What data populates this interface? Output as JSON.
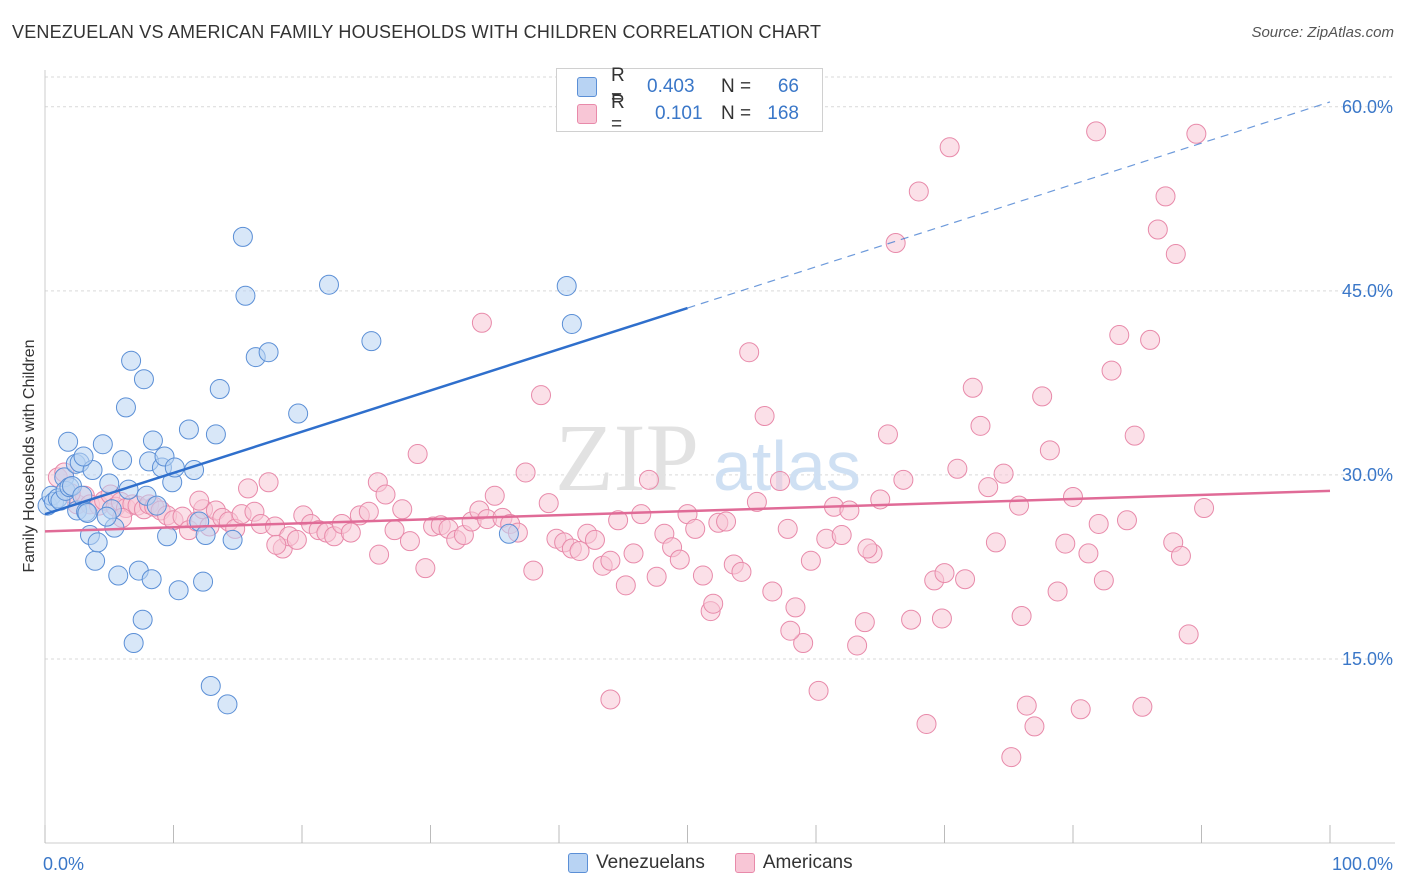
{
  "header": {
    "title": "VENEZUELAN VS AMERICAN FAMILY HOUSEHOLDS WITH CHILDREN CORRELATION CHART",
    "source": "Source: ZipAtlas.com"
  },
  "legend": {
    "rows": [
      {
        "r_label": "R =",
        "r_value": "0.403",
        "n_label": "N =",
        "n_value": "66"
      },
      {
        "r_label": "R =",
        "r_value": "0.101",
        "n_label": "N =",
        "n_value": "168"
      }
    ]
  },
  "watermark": {
    "zip": "ZIP",
    "atlas": "atlas"
  },
  "colors": {
    "venezuelan_fill": "#b8d3f3",
    "venezuelan_stroke": "#5b8fd6",
    "venezuelan_line": "#2f6fcc",
    "american_fill": "#f8c6d6",
    "american_stroke": "#e88aaa",
    "american_line": "#e06b97",
    "axis_text": "#3a77c8",
    "grid": "#d9d9d9"
  },
  "chart_data": {
    "type": "scatter",
    "title": "VENEZUELAN VS AMERICAN FAMILY HOUSEHOLDS WITH CHILDREN CORRELATION CHART",
    "xlabel": "",
    "ylabel": "Family Households with Children",
    "xlim": [
      0,
      100
    ],
    "ylim": [
      0,
      63
    ],
    "x_tick_labels": [
      "0.0%",
      "100.0%"
    ],
    "y_ticks": [
      15,
      30,
      45,
      60
    ],
    "y_tick_labels": [
      "15.0%",
      "30.0%",
      "45.0%",
      "60.0%"
    ],
    "legend_entries": [
      "Venezuelans",
      "Americans"
    ],
    "series": [
      {
        "name": "Venezuelans",
        "r": 0.403,
        "n": 66,
        "trend": {
          "x0": 0,
          "y0": 26.8,
          "x1": 50,
          "y1": 43.6,
          "dashed_to_x": 100,
          "dashed_to_y": 60.4
        },
        "points": [
          [
            0.2,
            27.5
          ],
          [
            0.5,
            28.3
          ],
          [
            0.7,
            27.8
          ],
          [
            1.0,
            28.1
          ],
          [
            1.2,
            27.9
          ],
          [
            1.5,
            29.8
          ],
          [
            1.6,
            28.7
          ],
          [
            1.8,
            32.7
          ],
          [
            1.9,
            29.0
          ],
          [
            2.1,
            29.1
          ],
          [
            2.4,
            30.9
          ],
          [
            2.5,
            27.1
          ],
          [
            2.7,
            31.0
          ],
          [
            2.9,
            28.3
          ],
          [
            3.2,
            27.0
          ],
          [
            3.3,
            26.9
          ],
          [
            3.5,
            25.1
          ],
          [
            3.7,
            30.4
          ],
          [
            3.9,
            23.0
          ],
          [
            4.1,
            24.5
          ],
          [
            4.5,
            32.5
          ],
          [
            5.0,
            29.3
          ],
          [
            5.2,
            27.2
          ],
          [
            5.4,
            25.7
          ],
          [
            5.7,
            21.8
          ],
          [
            6.0,
            31.2
          ],
          [
            6.3,
            35.5
          ],
          [
            6.5,
            28.8
          ],
          [
            6.7,
            39.3
          ],
          [
            6.9,
            16.3
          ],
          [
            7.3,
            22.2
          ],
          [
            7.7,
            37.8
          ],
          [
            7.9,
            28.3
          ],
          [
            8.1,
            31.1
          ],
          [
            8.3,
            21.5
          ],
          [
            8.4,
            32.8
          ],
          [
            8.7,
            27.5
          ],
          [
            9.1,
            30.6
          ],
          [
            9.3,
            31.5
          ],
          [
            9.5,
            25.0
          ],
          [
            9.9,
            29.4
          ],
          [
            10.1,
            30.6
          ],
          [
            10.4,
            20.6
          ],
          [
            11.2,
            33.7
          ],
          [
            11.6,
            30.4
          ],
          [
            12.0,
            26.2
          ],
          [
            12.5,
            25.1
          ],
          [
            12.9,
            12.8
          ],
          [
            13.3,
            33.3
          ],
          [
            13.6,
            37.0
          ],
          [
            14.2,
            11.3
          ],
          [
            14.6,
            24.7
          ],
          [
            15.4,
            49.4
          ],
          [
            15.6,
            44.6
          ],
          [
            16.4,
            39.6
          ],
          [
            17.4,
            40.0
          ],
          [
            19.7,
            35.0
          ],
          [
            22.1,
            45.5
          ],
          [
            25.4,
            40.9
          ],
          [
            36.1,
            25.2
          ],
          [
            40.6,
            45.4
          ],
          [
            41.0,
            42.3
          ],
          [
            7.6,
            18.2
          ],
          [
            12.3,
            21.3
          ],
          [
            4.8,
            26.6
          ],
          [
            3.0,
            31.5
          ]
        ]
      },
      {
        "name": "Americans",
        "r": 0.101,
        "n": 168,
        "trend": {
          "x0": 0,
          "y0": 25.4,
          "x1": 100,
          "y1": 28.7
        },
        "points": [
          [
            1.0,
            29.8
          ],
          [
            1.5,
            30.2
          ],
          [
            2.5,
            27.6
          ],
          [
            3.1,
            28.3
          ],
          [
            3.5,
            27.6
          ],
          [
            4.2,
            27.5
          ],
          [
            4.6,
            27.9
          ],
          [
            5.1,
            28.4
          ],
          [
            5.5,
            27.4
          ],
          [
            5.9,
            27.8
          ],
          [
            6.3,
            27.3
          ],
          [
            6.8,
            27.6
          ],
          [
            7.2,
            27.5
          ],
          [
            7.7,
            27.2
          ],
          [
            8.1,
            27.6
          ],
          [
            8.5,
            27.4
          ],
          [
            9.0,
            27.1
          ],
          [
            9.5,
            26.7
          ],
          [
            10.0,
            26.3
          ],
          [
            10.7,
            26.6
          ],
          [
            11.2,
            25.5
          ],
          [
            11.8,
            26.2
          ],
          [
            12.3,
            27.2
          ],
          [
            12.8,
            25.8
          ],
          [
            13.3,
            27.1
          ],
          [
            13.8,
            26.5
          ],
          [
            14.3,
            26.2
          ],
          [
            14.8,
            25.6
          ],
          [
            15.3,
            26.8
          ],
          [
            15.8,
            28.9
          ],
          [
            16.3,
            27.0
          ],
          [
            16.8,
            26.0
          ],
          [
            17.4,
            29.4
          ],
          [
            17.9,
            25.8
          ],
          [
            18.5,
            24.0
          ],
          [
            19.0,
            25.0
          ],
          [
            19.6,
            24.7
          ],
          [
            20.1,
            26.7
          ],
          [
            20.7,
            26.0
          ],
          [
            21.3,
            25.5
          ],
          [
            21.9,
            25.3
          ],
          [
            22.5,
            25.0
          ],
          [
            23.1,
            26.0
          ],
          [
            23.8,
            25.3
          ],
          [
            24.5,
            26.7
          ],
          [
            25.2,
            27.0
          ],
          [
            25.9,
            29.4
          ],
          [
            26.5,
            28.4
          ],
          [
            27.2,
            25.5
          ],
          [
            27.8,
            27.2
          ],
          [
            28.4,
            24.6
          ],
          [
            29.0,
            31.7
          ],
          [
            29.6,
            22.4
          ],
          [
            30.2,
            25.8
          ],
          [
            30.8,
            25.9
          ],
          [
            31.4,
            25.6
          ],
          [
            32.0,
            24.7
          ],
          [
            32.6,
            25.1
          ],
          [
            33.2,
            26.2
          ],
          [
            33.8,
            27.1
          ],
          [
            34.4,
            26.4
          ],
          [
            35.0,
            28.3
          ],
          [
            35.6,
            26.5
          ],
          [
            36.2,
            26.0
          ],
          [
            36.8,
            25.3
          ],
          [
            37.4,
            30.2
          ],
          [
            38.0,
            22.2
          ],
          [
            38.6,
            36.5
          ],
          [
            39.2,
            27.7
          ],
          [
            39.8,
            24.8
          ],
          [
            40.4,
            24.5
          ],
          [
            41.0,
            24.0
          ],
          [
            41.6,
            23.8
          ],
          [
            42.2,
            25.2
          ],
          [
            42.8,
            24.7
          ],
          [
            43.4,
            22.6
          ],
          [
            44.0,
            23.0
          ],
          [
            44.6,
            26.3
          ],
          [
            45.2,
            21.0
          ],
          [
            45.8,
            23.6
          ],
          [
            46.4,
            26.8
          ],
          [
            47.0,
            29.6
          ],
          [
            47.6,
            21.7
          ],
          [
            48.2,
            25.2
          ],
          [
            48.8,
            24.1
          ],
          [
            49.4,
            23.1
          ],
          [
            50.0,
            26.8
          ],
          [
            50.6,
            25.6
          ],
          [
            51.2,
            21.8
          ],
          [
            51.8,
            18.9
          ],
          [
            52.4,
            26.1
          ],
          [
            53.0,
            26.2
          ],
          [
            53.6,
            22.7
          ],
          [
            54.2,
            22.1
          ],
          [
            54.8,
            40.0
          ],
          [
            55.4,
            27.8
          ],
          [
            56.0,
            34.8
          ],
          [
            56.6,
            20.5
          ],
          [
            57.2,
            29.5
          ],
          [
            57.8,
            25.6
          ],
          [
            58.4,
            19.2
          ],
          [
            59.0,
            16.3
          ],
          [
            59.6,
            23.0
          ],
          [
            60.2,
            12.4
          ],
          [
            60.8,
            24.8
          ],
          [
            61.4,
            27.4
          ],
          [
            62.0,
            25.1
          ],
          [
            62.6,
            27.1
          ],
          [
            63.2,
            16.1
          ],
          [
            63.8,
            18.0
          ],
          [
            64.4,
            23.6
          ],
          [
            65.0,
            28.0
          ],
          [
            65.6,
            33.3
          ],
          [
            66.2,
            48.9
          ],
          [
            66.8,
            29.6
          ],
          [
            67.4,
            18.2
          ],
          [
            68.0,
            53.1
          ],
          [
            68.6,
            9.7
          ],
          [
            69.2,
            21.4
          ],
          [
            69.8,
            18.3
          ],
          [
            70.4,
            56.7
          ],
          [
            71.0,
            30.5
          ],
          [
            71.6,
            21.5
          ],
          [
            72.2,
            37.1
          ],
          [
            72.8,
            34.0
          ],
          [
            73.4,
            29.0
          ],
          [
            74.0,
            24.5
          ],
          [
            74.6,
            30.1
          ],
          [
            75.2,
            7.0
          ],
          [
            75.8,
            27.5
          ],
          [
            76.4,
            11.2
          ],
          [
            77.0,
            9.5
          ],
          [
            77.6,
            36.4
          ],
          [
            78.2,
            32.0
          ],
          [
            78.8,
            20.5
          ],
          [
            79.4,
            24.4
          ],
          [
            80.0,
            28.2
          ],
          [
            80.6,
            10.9
          ],
          [
            81.2,
            23.6
          ],
          [
            81.8,
            58.0
          ],
          [
            82.4,
            21.4
          ],
          [
            83.0,
            38.5
          ],
          [
            83.6,
            41.4
          ],
          [
            84.2,
            26.3
          ],
          [
            84.8,
            33.2
          ],
          [
            85.4,
            11.1
          ],
          [
            86.0,
            41.0
          ],
          [
            86.6,
            50.0
          ],
          [
            87.2,
            52.7
          ],
          [
            87.8,
            24.5
          ],
          [
            88.4,
            23.4
          ],
          [
            89.0,
            17.0
          ],
          [
            89.6,
            57.8
          ],
          [
            90.2,
            27.3
          ],
          [
            2.0,
            28.5
          ],
          [
            6.0,
            26.5
          ],
          [
            12.0,
            27.9
          ],
          [
            18.0,
            24.3
          ],
          [
            26.0,
            23.5
          ],
          [
            34.0,
            42.4
          ],
          [
            44.0,
            11.7
          ],
          [
            52.0,
            19.5
          ],
          [
            58.0,
            17.3
          ],
          [
            64.0,
            24.0
          ],
          [
            70.0,
            22.0
          ],
          [
            76.0,
            18.5
          ],
          [
            82.0,
            26.0
          ],
          [
            88.0,
            48.0
          ]
        ]
      }
    ]
  }
}
